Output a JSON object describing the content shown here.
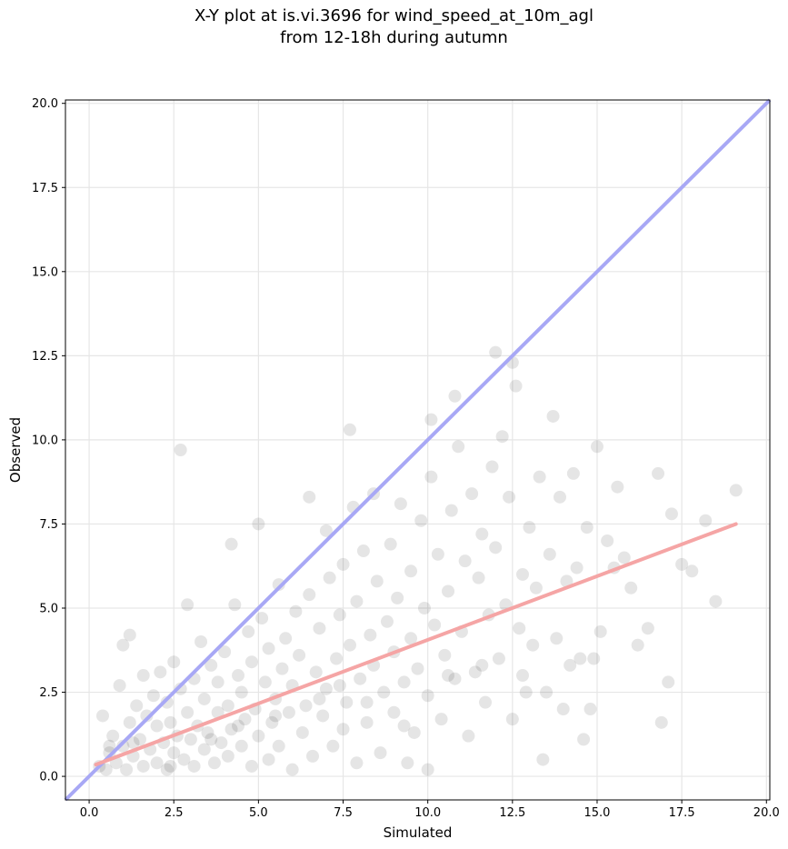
{
  "chart_data": {
    "type": "scatter",
    "title_lines": [
      "X-Y plot at is.vi.3696 for wind_speed_at_10m_agl",
      "from 12-18h during autumn"
    ],
    "xlabel": "Simulated",
    "ylabel": "Observed",
    "xlim": [
      -0.7,
      20.1
    ],
    "ylim": [
      -0.7,
      20.1
    ],
    "xticks": [
      0.0,
      2.5,
      5.0,
      7.5,
      10.0,
      12.5,
      15.0,
      17.5,
      20.0
    ],
    "yticks": [
      0.0,
      2.5,
      5.0,
      7.5,
      10.0,
      12.5,
      15.0,
      17.5,
      20.0
    ],
    "tick_labels": [
      "0.0",
      "2.5",
      "5.0",
      "7.5",
      "10.0",
      "12.5",
      "15.0",
      "17.5",
      "20.0"
    ],
    "grid": true,
    "identity_line": {
      "x": [
        -0.7,
        20.1
      ],
      "y": [
        -0.7,
        20.1
      ],
      "color": "#a8a8f5"
    },
    "regression_line": {
      "x": [
        0.2,
        19.1
      ],
      "y": [
        0.35,
        7.5
      ],
      "color": "#f5a5a5"
    },
    "point_color": "#000000",
    "points": [
      [
        0.3,
        0.3
      ],
      [
        0.4,
        1.8
      ],
      [
        0.5,
        0.2
      ],
      [
        0.6,
        0.7
      ],
      [
        0.7,
        1.2
      ],
      [
        0.8,
        0.4
      ],
      [
        0.9,
        2.7
      ],
      [
        1.0,
        0.9
      ],
      [
        1.0,
        3.9
      ],
      [
        1.1,
        0.2
      ],
      [
        1.2,
        4.2
      ],
      [
        1.2,
        1.6
      ],
      [
        1.3,
        0.6
      ],
      [
        1.4,
        2.1
      ],
      [
        1.5,
        1.1
      ],
      [
        1.6,
        0.3
      ],
      [
        1.6,
        3.0
      ],
      [
        1.7,
        1.8
      ],
      [
        1.8,
        0.8
      ],
      [
        1.9,
        2.4
      ],
      [
        2.0,
        0.4
      ],
      [
        2.0,
        1.5
      ],
      [
        2.1,
        3.1
      ],
      [
        2.2,
        1.0
      ],
      [
        2.3,
        0.2
      ],
      [
        2.3,
        2.2
      ],
      [
        2.4,
        1.6
      ],
      [
        2.5,
        0.7
      ],
      [
        2.5,
        3.4
      ],
      [
        2.6,
        1.2
      ],
      [
        2.7,
        9.7
      ],
      [
        2.7,
        2.6
      ],
      [
        2.8,
        0.5
      ],
      [
        2.9,
        5.1
      ],
      [
        2.9,
        1.9
      ],
      [
        3.0,
        1.1
      ],
      [
        3.1,
        0.3
      ],
      [
        3.1,
        2.9
      ],
      [
        3.2,
        1.5
      ],
      [
        3.3,
        4.0
      ],
      [
        3.4,
        0.8
      ],
      [
        3.4,
        2.3
      ],
      [
        3.5,
        1.3
      ],
      [
        3.6,
        3.3
      ],
      [
        3.7,
        0.4
      ],
      [
        3.8,
        1.9
      ],
      [
        3.8,
        2.8
      ],
      [
        3.9,
        1.0
      ],
      [
        4.0,
        3.7
      ],
      [
        4.1,
        0.6
      ],
      [
        4.1,
        2.1
      ],
      [
        4.2,
        6.9
      ],
      [
        4.2,
        1.4
      ],
      [
        4.3,
        5.1
      ],
      [
        4.4,
        3.0
      ],
      [
        4.5,
        0.9
      ],
      [
        4.5,
        2.5
      ],
      [
        4.6,
        1.7
      ],
      [
        4.7,
        4.3
      ],
      [
        4.8,
        0.3
      ],
      [
        4.8,
        3.4
      ],
      [
        4.9,
        2.0
      ],
      [
        5.0,
        7.5
      ],
      [
        5.0,
        1.2
      ],
      [
        5.1,
        4.7
      ],
      [
        5.2,
        2.8
      ],
      [
        5.3,
        0.5
      ],
      [
        5.3,
        3.8
      ],
      [
        5.4,
        1.6
      ],
      [
        5.5,
        2.3
      ],
      [
        5.6,
        5.7
      ],
      [
        5.6,
        0.9
      ],
      [
        5.7,
        3.2
      ],
      [
        5.8,
        4.1
      ],
      [
        5.9,
        1.9
      ],
      [
        6.0,
        2.7
      ],
      [
        6.0,
        0.2
      ],
      [
        6.1,
        4.9
      ],
      [
        6.2,
        3.6
      ],
      [
        6.3,
        1.3
      ],
      [
        6.4,
        2.1
      ],
      [
        6.5,
        8.3
      ],
      [
        6.5,
        5.4
      ],
      [
        6.6,
        0.6
      ],
      [
        6.7,
        3.1
      ],
      [
        6.8,
        4.4
      ],
      [
        6.9,
        1.8
      ],
      [
        7.0,
        7.3
      ],
      [
        7.0,
        2.6
      ],
      [
        7.1,
        5.9
      ],
      [
        7.2,
        0.9
      ],
      [
        7.3,
        3.5
      ],
      [
        7.4,
        4.8
      ],
      [
        7.5,
        1.4
      ],
      [
        7.5,
        6.3
      ],
      [
        7.6,
        2.2
      ],
      [
        7.7,
        10.3
      ],
      [
        7.7,
        3.9
      ],
      [
        7.8,
        8.0
      ],
      [
        7.9,
        0.4
      ],
      [
        7.9,
        5.2
      ],
      [
        8.0,
        2.9
      ],
      [
        8.1,
        6.7
      ],
      [
        8.2,
        1.6
      ],
      [
        8.3,
        4.2
      ],
      [
        8.4,
        8.4
      ],
      [
        8.4,
        3.3
      ],
      [
        8.5,
        5.8
      ],
      [
        8.6,
        0.7
      ],
      [
        8.7,
        2.5
      ],
      [
        8.8,
        4.6
      ],
      [
        8.9,
        6.9
      ],
      [
        9.0,
        1.9
      ],
      [
        9.0,
        3.7
      ],
      [
        9.1,
        5.3
      ],
      [
        9.2,
        8.1
      ],
      [
        9.3,
        2.8
      ],
      [
        9.4,
        0.4
      ],
      [
        9.5,
        4.1
      ],
      [
        9.5,
        6.1
      ],
      [
        9.6,
        1.3
      ],
      [
        9.7,
        3.2
      ],
      [
        9.8,
        7.6
      ],
      [
        9.9,
        5.0
      ],
      [
        10.0,
        0.2
      ],
      [
        10.0,
        2.4
      ],
      [
        10.1,
        10.6
      ],
      [
        10.1,
        8.9
      ],
      [
        10.2,
        4.5
      ],
      [
        10.3,
        6.6
      ],
      [
        10.4,
        1.7
      ],
      [
        10.5,
        3.6
      ],
      [
        10.6,
        5.5
      ],
      [
        10.7,
        7.9
      ],
      [
        10.8,
        11.3
      ],
      [
        10.8,
        2.9
      ],
      [
        10.9,
        9.8
      ],
      [
        11.0,
        4.3
      ],
      [
        11.1,
        6.4
      ],
      [
        11.2,
        1.2
      ],
      [
        11.3,
        8.4
      ],
      [
        11.4,
        3.1
      ],
      [
        11.5,
        5.9
      ],
      [
        11.6,
        7.2
      ],
      [
        11.7,
        2.2
      ],
      [
        11.8,
        4.8
      ],
      [
        11.9,
        9.2
      ],
      [
        12.0,
        12.6
      ],
      [
        12.0,
        6.8
      ],
      [
        12.1,
        3.5
      ],
      [
        12.2,
        10.1
      ],
      [
        12.3,
        5.1
      ],
      [
        12.4,
        8.3
      ],
      [
        12.5,
        12.3
      ],
      [
        12.5,
        1.7
      ],
      [
        12.6,
        11.6
      ],
      [
        12.7,
        4.4
      ],
      [
        12.8,
        6.0
      ],
      [
        12.9,
        2.5
      ],
      [
        13.0,
        7.4
      ],
      [
        13.1,
        3.9
      ],
      [
        13.2,
        5.6
      ],
      [
        13.3,
        8.9
      ],
      [
        13.4,
        0.5
      ],
      [
        13.5,
        2.5
      ],
      [
        13.6,
        6.6
      ],
      [
        13.7,
        10.7
      ],
      [
        13.8,
        4.1
      ],
      [
        13.9,
        8.3
      ],
      [
        14.0,
        2.0
      ],
      [
        14.1,
        5.8
      ],
      [
        14.2,
        3.3
      ],
      [
        14.3,
        9.0
      ],
      [
        14.4,
        6.2
      ],
      [
        14.5,
        3.5
      ],
      [
        14.6,
        1.1
      ],
      [
        14.7,
        7.4
      ],
      [
        14.8,
        2.0
      ],
      [
        14.9,
        3.5
      ],
      [
        15.0,
        9.8
      ],
      [
        15.1,
        4.3
      ],
      [
        15.3,
        7.0
      ],
      [
        15.5,
        6.2
      ],
      [
        15.6,
        8.6
      ],
      [
        15.8,
        6.5
      ],
      [
        16.0,
        5.6
      ],
      [
        16.2,
        3.9
      ],
      [
        16.5,
        4.4
      ],
      [
        16.8,
        9.0
      ],
      [
        16.9,
        1.6
      ],
      [
        17.1,
        2.8
      ],
      [
        17.2,
        7.8
      ],
      [
        17.5,
        6.3
      ],
      [
        17.8,
        6.1
      ],
      [
        18.2,
        7.6
      ],
      [
        18.5,
        5.2
      ],
      [
        19.1,
        8.5
      ],
      [
        0.6,
        0.9
      ],
      [
        1.3,
        1.0
      ],
      [
        2.4,
        0.3
      ],
      [
        3.6,
        1.1
      ],
      [
        4.4,
        1.5
      ],
      [
        5.5,
        1.8
      ],
      [
        6.8,
        2.3
      ],
      [
        7.4,
        2.7
      ],
      [
        8.2,
        2.2
      ],
      [
        9.3,
        1.5
      ],
      [
        10.6,
        3.0
      ],
      [
        11.6,
        3.3
      ],
      [
        12.8,
        3.0
      ]
    ]
  }
}
